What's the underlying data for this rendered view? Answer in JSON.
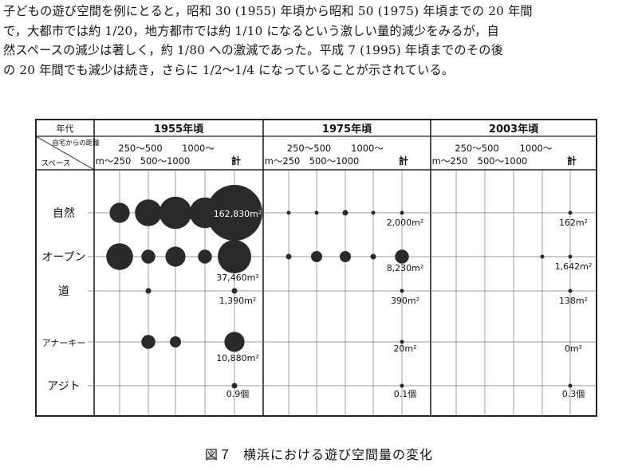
{
  "paragraph": {
    "lines": [
      "子どもの遊び空間を例にとると，昭和 30 (1955) 年頃から昭和 50 (1975) 年頃までの 20 年間",
      "で，大都市では約 1/20，地方都市では約 1/10 になるという激しい量的減少をみるが，自",
      "然スペースの減少は著しく，約 1/80 への激減であった。平成 7 (1995) 年頃までのその後",
      "の 20 年間でも減少は続き，さらに 1/2〜1/4 になっていることが示されている。"
    ]
  },
  "caption": {
    "number": "図７",
    "title": "横浜における遊び空間量の変化"
  },
  "chart_data": {
    "type": "table",
    "header": {
      "corner_top": "年代",
      "corner_diag_top": "自宅からの距離",
      "corner_diag_bottom": "スペース",
      "distance_labels_top": [
        "250〜500",
        "1000〜"
      ],
      "distance_labels_bottom": [
        "m〜250",
        "500〜1000",
        "計"
      ]
    },
    "periods": [
      "1955年頃",
      "1975年頃",
      "2003年頃"
    ],
    "distance_bands": [
      "m〜250",
      "250〜500",
      "500〜1000",
      "1000〜",
      "計"
    ],
    "space_types": [
      "自然",
      "オープン",
      "道",
      "アナーキー",
      "アジト"
    ],
    "totals": [
      [
        "162,830m²",
        "2,000m²",
        "162m²"
      ],
      [
        "37,460m²",
        "8,230m²",
        "1,642m²"
      ],
      [
        "1,390m²",
        "390m²",
        "138m²"
      ],
      [
        "10,880m²",
        "20m²",
        "0m²"
      ],
      [
        "0.9個",
        "0.1個",
        "0.3個"
      ]
    ],
    "bubble_sizes_relative": [
      [
        [
          0.36,
          0.48,
          0.58,
          0.55,
          1.0
        ],
        [
          0.06,
          0.06,
          0.1,
          0.06,
          0.06
        ],
        [
          0,
          0,
          0,
          0,
          0.06
        ]
      ],
      [
        [
          0.48,
          0.25,
          0.36,
          0.25,
          0.6
        ],
        [
          0.1,
          0.2,
          0.2,
          0.1,
          0.25
        ],
        [
          0,
          0,
          0,
          0.04,
          0.06
        ]
      ],
      [
        [
          0,
          0.1,
          0,
          0,
          0.1
        ],
        [
          0,
          0,
          0,
          0,
          0.06
        ],
        [
          0,
          0,
          0,
          0,
          0.04
        ]
      ],
      [
        [
          0,
          0.25,
          0.2,
          0,
          0.36
        ],
        [
          0,
          0,
          0,
          0,
          0.04
        ],
        [
          0,
          0,
          0,
          0,
          0
        ]
      ],
      [
        [
          0,
          0,
          0,
          0,
          0.1
        ],
        [
          0,
          0,
          0,
          0,
          0.06
        ],
        [
          0,
          0,
          0,
          0,
          0.06
        ]
      ]
    ],
    "grid": "vertical lines per distance band, horizontal lines per space type"
  }
}
